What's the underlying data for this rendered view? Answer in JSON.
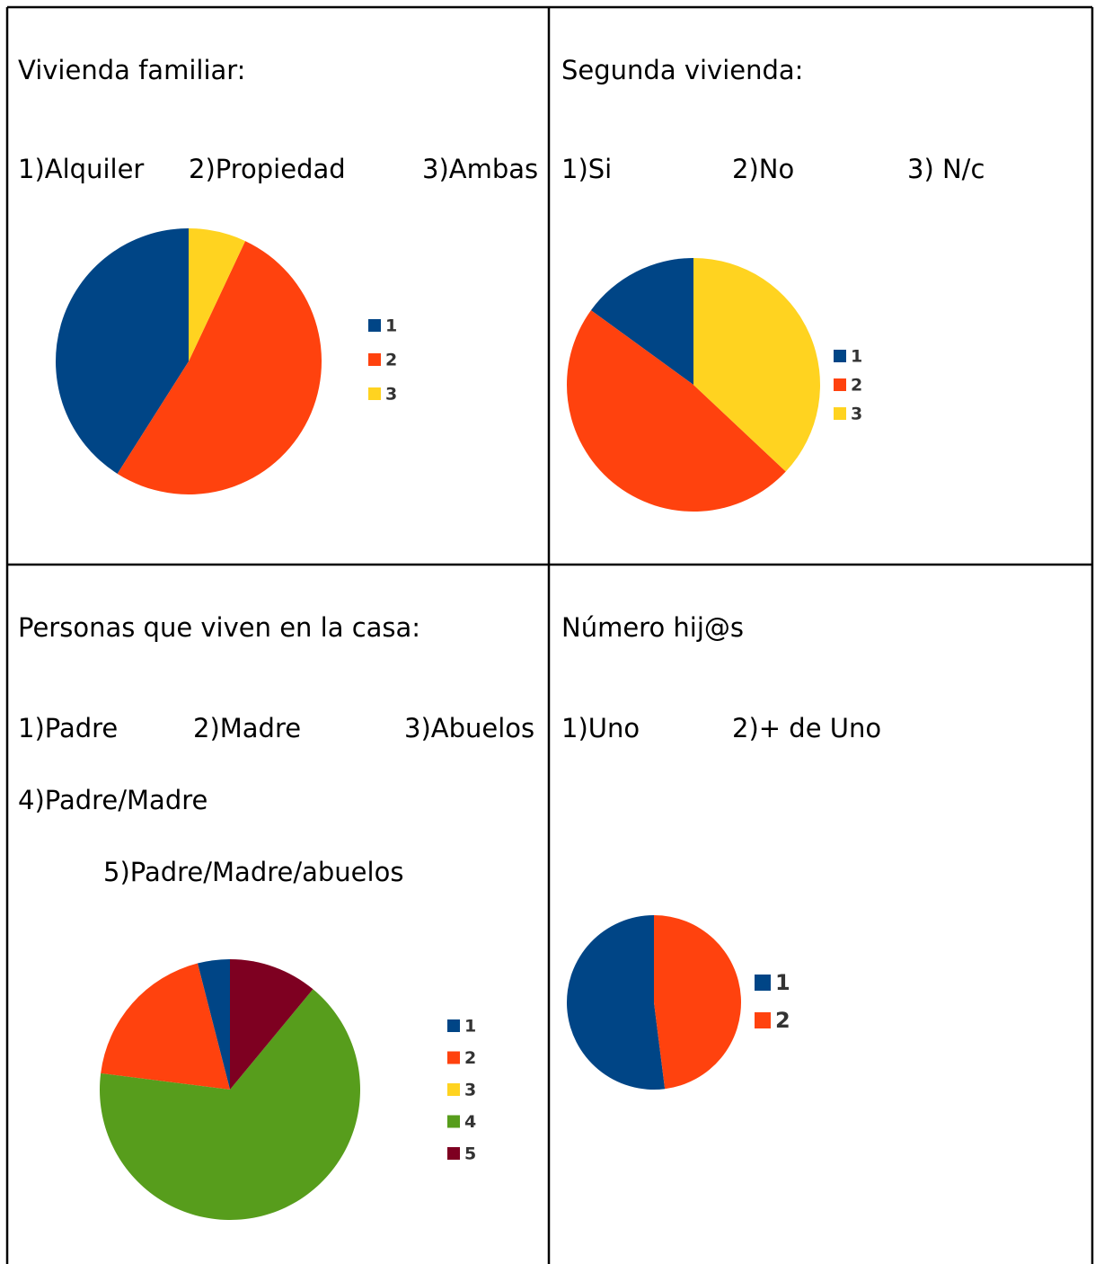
{
  "cells": [
    {
      "title": "Vivienda familiar:",
      "options": [
        "1)Alquiler",
        "2)Propiedad",
        "3)Ambas"
      ]
    },
    {
      "title": "Segunda vivienda:",
      "options": [
        "1)Si",
        "2)No",
        "3) N/c"
      ]
    },
    {
      "title": "Personas que viven en la casa:",
      "options": [
        "1)Padre",
        "2)Madre",
        "3)Abuelos",
        "4)Padre/Madre",
        "5)Padre/Madre/abuelos"
      ]
    },
    {
      "title": "Número hij@s",
      "options": [
        "1)Uno",
        "2)+ de Uno"
      ]
    }
  ],
  "chart_data": [
    {
      "type": "pie",
      "categories": [
        "1",
        "2",
        "3"
      ],
      "values": [
        41,
        52,
        7
      ],
      "colors": [
        "#004586",
        "#ff420e",
        "#ffd320"
      ]
    },
    {
      "type": "pie",
      "categories": [
        "1",
        "2",
        "3"
      ],
      "values": [
        15,
        48,
        37
      ],
      "colors": [
        "#004586",
        "#ff420e",
        "#ffd320"
      ]
    },
    {
      "type": "pie",
      "categories": [
        "1",
        "2",
        "3",
        "4",
        "5"
      ],
      "values": [
        4,
        19,
        0,
        66,
        11
      ],
      "colors": [
        "#004586",
        "#ff420e",
        "#ffd320",
        "#579d1c",
        "#7e0021"
      ]
    },
    {
      "type": "pie",
      "categories": [
        "1",
        "2"
      ],
      "values": [
        52,
        48
      ],
      "colors": [
        "#004586",
        "#ff420e"
      ]
    }
  ]
}
